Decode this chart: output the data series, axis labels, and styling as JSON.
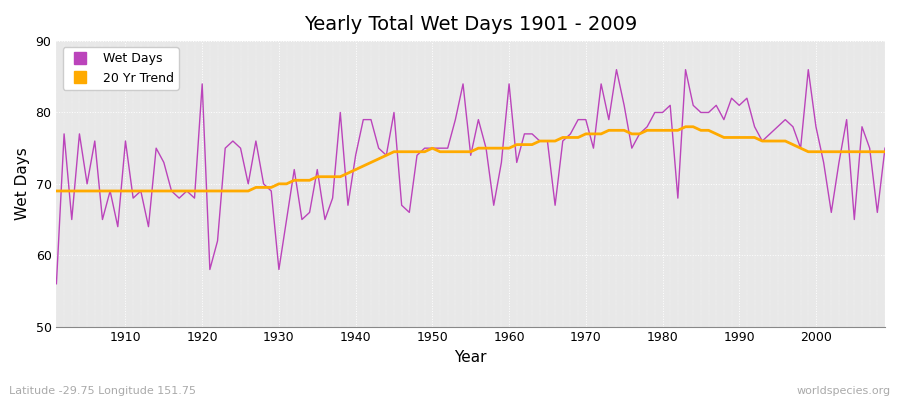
{
  "title": "Yearly Total Wet Days 1901 - 2009",
  "xlabel": "Year",
  "ylabel": "Wet Days",
  "bg_color": "#e8e8e8",
  "fig_bg_color": "#ffffff",
  "line_color": "#bb44bb",
  "trend_color": "#ffaa00",
  "ylim": [
    50,
    90
  ],
  "yticks": [
    50,
    60,
    70,
    80,
    90
  ],
  "xlim": [
    1901,
    2009
  ],
  "legend_labels": [
    "Wet Days",
    "20 Yr Trend"
  ],
  "subtitle": "Latitude -29.75 Longitude 151.75",
  "watermark": "worldspecies.org",
  "years": [
    1901,
    1902,
    1903,
    1904,
    1905,
    1906,
    1907,
    1908,
    1909,
    1910,
    1911,
    1912,
    1913,
    1914,
    1915,
    1916,
    1917,
    1918,
    1919,
    1920,
    1921,
    1922,
    1923,
    1924,
    1925,
    1926,
    1927,
    1928,
    1929,
    1930,
    1931,
    1932,
    1933,
    1934,
    1935,
    1936,
    1937,
    1938,
    1939,
    1940,
    1941,
    1942,
    1943,
    1944,
    1945,
    1946,
    1947,
    1948,
    1949,
    1950,
    1951,
    1952,
    1953,
    1954,
    1955,
    1956,
    1957,
    1958,
    1959,
    1960,
    1961,
    1962,
    1963,
    1964,
    1965,
    1966,
    1967,
    1968,
    1969,
    1970,
    1971,
    1972,
    1973,
    1974,
    1975,
    1976,
    1977,
    1978,
    1979,
    1980,
    1981,
    1982,
    1983,
    1984,
    1985,
    1986,
    1987,
    1988,
    1989,
    1990,
    1991,
    1992,
    1993,
    1994,
    1995,
    1996,
    1997,
    1998,
    1999,
    2000,
    2001,
    2002,
    2003,
    2004,
    2005,
    2006,
    2007,
    2008,
    2009
  ],
  "wet_days": [
    56,
    77,
    65,
    77,
    70,
    76,
    65,
    69,
    64,
    76,
    68,
    69,
    64,
    75,
    73,
    69,
    68,
    69,
    68,
    84,
    58,
    62,
    75,
    76,
    75,
    70,
    76,
    70,
    69,
    58,
    65,
    72,
    65,
    66,
    72,
    65,
    68,
    80,
    67,
    74,
    79,
    79,
    75,
    74,
    80,
    67,
    66,
    74,
    75,
    75,
    75,
    75,
    79,
    84,
    74,
    79,
    75,
    67,
    73,
    84,
    73,
    77,
    77,
    76,
    76,
    67,
    76,
    77,
    79,
    79,
    75,
    84,
    79,
    86,
    81,
    75,
    77,
    78,
    80,
    80,
    81,
    68,
    86,
    81,
    80,
    80,
    81,
    79,
    82,
    81,
    82,
    78,
    76,
    77,
    78,
    79,
    78,
    75,
    86,
    78,
    73,
    66,
    73,
    79,
    65,
    78,
    75,
    66,
    75
  ],
  "trend": [
    69.0,
    69.0,
    69.0,
    69.0,
    69.0,
    69.0,
    69.0,
    69.0,
    69.0,
    69.0,
    69.0,
    69.0,
    69.0,
    69.0,
    69.0,
    69.0,
    69.0,
    69.0,
    69.0,
    69.0,
    69.0,
    69.0,
    69.0,
    69.0,
    69.0,
    69.0,
    69.5,
    69.5,
    69.5,
    70.0,
    70.0,
    70.5,
    70.5,
    70.5,
    71.0,
    71.0,
    71.0,
    71.0,
    71.5,
    72.0,
    72.5,
    73.0,
    73.5,
    74.0,
    74.5,
    74.5,
    74.5,
    74.5,
    74.5,
    75.0,
    74.5,
    74.5,
    74.5,
    74.5,
    74.5,
    75.0,
    75.0,
    75.0,
    75.0,
    75.0,
    75.5,
    75.5,
    75.5,
    76.0,
    76.0,
    76.0,
    76.5,
    76.5,
    76.5,
    77.0,
    77.0,
    77.0,
    77.5,
    77.5,
    77.5,
    77.0,
    77.0,
    77.5,
    77.5,
    77.5,
    77.5,
    77.5,
    78.0,
    78.0,
    77.5,
    77.5,
    77.0,
    76.5,
    76.5,
    76.5,
    76.5,
    76.5,
    76.0,
    76.0,
    76.0,
    76.0,
    75.5,
    75.0,
    74.5,
    74.5,
    74.5,
    74.5,
    74.5,
    74.5,
    74.5,
    74.5,
    74.5,
    74.5,
    74.5
  ]
}
